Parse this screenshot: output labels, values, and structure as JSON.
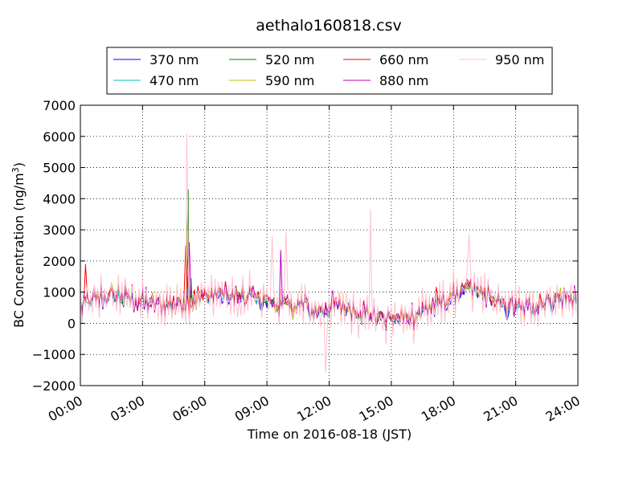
{
  "chart_data": {
    "type": "line",
    "title": "aethalo160818.csv",
    "xlabel": "Time on 2016-08-18 (JST)",
    "ylabel": "BC Concentration (ng/m",
    "ylabel_sup": "3",
    "ylabel_end": ")",
    "xlim": [
      "00:00",
      "24:00"
    ],
    "ylim": [
      -2000,
      7000
    ],
    "xticks": [
      "00:00",
      "03:00",
      "06:00",
      "09:00",
      "12:00",
      "15:00",
      "18:00",
      "21:00",
      "24:00"
    ],
    "yticks": [
      "-2000",
      "-1000",
      "0",
      "1000",
      "2000",
      "3000",
      "4000",
      "5000",
      "6000",
      "7000"
    ],
    "grid": true,
    "legend_position": "top",
    "series": [
      {
        "name": "370 nm",
        "color": "#0000ff",
        "offset": -60,
        "scale": 0.85,
        "spikes": [
          [
            "05:10",
            2400
          ]
        ]
      },
      {
        "name": "470 nm",
        "color": "#00bfbf",
        "offset": -30,
        "scale": 0.9,
        "spikes": [
          [
            "05:10",
            2800
          ]
        ]
      },
      {
        "name": "520 nm",
        "color": "#008000",
        "offset": 0,
        "scale": 0.95,
        "spikes": [
          [
            "05:12",
            4300
          ],
          [
            "05:20",
            1450
          ]
        ]
      },
      {
        "name": "590 nm",
        "color": "#bfbf00",
        "offset": 20,
        "scale": 1.0,
        "spikes": [
          [
            "05:10",
            3000
          ]
        ]
      },
      {
        "name": "660 nm",
        "color": "#ff0000",
        "offset": 40,
        "scale": 1.05,
        "spikes": [
          [
            "05:05",
            2500
          ],
          [
            "00:15",
            1900
          ]
        ]
      },
      {
        "name": "880 nm",
        "color": "#bf00bf",
        "offset": 10,
        "scale": 1.15,
        "spikes": [
          [
            "05:15",
            2600
          ],
          [
            "09:40",
            2350
          ]
        ]
      },
      {
        "name": "950 nm",
        "color": "#ffc0cb",
        "offset": 0,
        "scale": 1.9,
        "spikes": [
          [
            "05:08",
            6100
          ],
          [
            "14:00",
            3650
          ],
          [
            "09:15",
            2800
          ],
          [
            "09:55",
            2950
          ],
          [
            "18:45",
            2850
          ],
          [
            "11:50",
            -1600
          ]
        ]
      }
    ]
  }
}
